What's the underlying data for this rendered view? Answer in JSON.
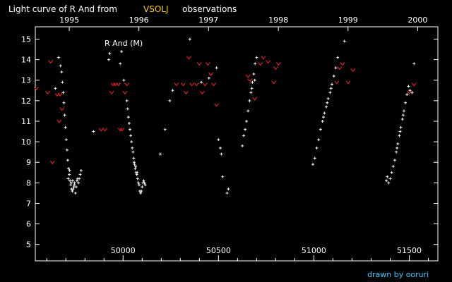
{
  "chart_data": {
    "type": "scatter",
    "title_parts": [
      "Light curve of R And from",
      "VSOLJ",
      "observations"
    ],
    "title_colors": [
      "#ffffff",
      "#ffcc00",
      "#ffffff"
    ],
    "inner_label": "R And (M)",
    "credit": "drawn by ooruri",
    "credit_color": "#33ccff",
    "x_bottom_ticks": [
      50000,
      50500,
      51000,
      51500
    ],
    "x_bottom_labels": [
      "50000",
      "50500",
      "51000",
      "51500"
    ],
    "x_top_ticks": [
      1995,
      1996,
      1997,
      1998,
      1999,
      2000
    ],
    "x_top_labels": [
      "1995",
      "1996",
      "1997",
      "1998",
      1999,
      "2000"
    ],
    "x_top_jd": [
      49718,
      50083,
      50448,
      50814,
      51179,
      51544
    ],
    "xlim": [
      49540,
      51650
    ],
    "ylim": [
      15.6,
      4.2
    ],
    "y_ticks": [
      5,
      6,
      7,
      8,
      9,
      10,
      11,
      12,
      13,
      14,
      15
    ],
    "y_labels": [
      "5",
      "6",
      "7",
      "8",
      "9",
      "10",
      "11",
      "12",
      "13",
      "14",
      "15"
    ],
    "series": [
      {
        "name": "",
        "marker": "plus",
        "color": "#ffffff",
        "points": [
          [
            49645,
            12.6
          ],
          [
            49662,
            14.1
          ],
          [
            49672,
            13.7
          ],
          [
            49678,
            13.4
          ],
          [
            49682,
            12.9
          ],
          [
            49686,
            12.4
          ],
          [
            49690,
            11.9
          ],
          [
            49694,
            11.3
          ],
          [
            49698,
            10.7
          ],
          [
            49702,
            10.1
          ],
          [
            49706,
            9.6
          ],
          [
            49710,
            9.1
          ],
          [
            49714,
            8.7
          ],
          [
            49718,
            8.4
          ],
          [
            49722,
            8.1
          ],
          [
            49726,
            7.9
          ],
          [
            49730,
            7.7
          ],
          [
            49734,
            7.6
          ],
          [
            49738,
            7.7
          ],
          [
            49742,
            7.8
          ],
          [
            49746,
            8.0
          ],
          [
            49750,
            7.5
          ],
          [
            49754,
            7.8
          ],
          [
            49758,
            8.1
          ],
          [
            49762,
            8.2
          ],
          [
            49766,
            8.0
          ],
          [
            49770,
            8.2
          ],
          [
            49775,
            8.4
          ],
          [
            49780,
            8.6
          ],
          [
            49712,
            8.2
          ],
          [
            49720,
            8.6
          ],
          [
            49728,
            8.0
          ],
          [
            49736,
            8.1
          ],
          [
            49744,
            7.9
          ],
          [
            49845,
            10.5
          ],
          [
            49925,
            14.0
          ],
          [
            49930,
            14.3
          ],
          [
            49985,
            13.8
          ],
          [
            49992,
            14.4
          ],
          [
            50004,
            13.0
          ],
          [
            50020,
            12.0
          ],
          [
            50024,
            11.6
          ],
          [
            50028,
            11.2
          ],
          [
            50032,
            10.9
          ],
          [
            50036,
            10.6
          ],
          [
            50040,
            10.3
          ],
          [
            50044,
            10.0
          ],
          [
            50048,
            9.7
          ],
          [
            50052,
            9.5
          ],
          [
            50056,
            9.2
          ],
          [
            50060,
            8.9
          ],
          [
            50064,
            8.7
          ],
          [
            50068,
            8.5
          ],
          [
            50072,
            8.4
          ],
          [
            50076,
            8.2
          ],
          [
            50080,
            8.0
          ],
          [
            50084,
            7.9
          ],
          [
            50088,
            7.6
          ],
          [
            50092,
            7.5
          ],
          [
            50096,
            7.6
          ],
          [
            50100,
            7.8
          ],
          [
            50104,
            8.0
          ],
          [
            50108,
            8.1
          ],
          [
            50112,
            8.0
          ],
          [
            50116,
            7.9
          ],
          [
            50058,
            9.0
          ],
          [
            50066,
            8.8
          ],
          [
            50074,
            8.5
          ],
          [
            50195,
            9.4
          ],
          [
            50220,
            10.6
          ],
          [
            50245,
            12.0
          ],
          [
            50260,
            12.5
          ],
          [
            50350,
            15.0
          ],
          [
            50410,
            12.9
          ],
          [
            50450,
            13.1
          ],
          [
            50490,
            13.6
          ],
          [
            50500,
            10.1
          ],
          [
            50510,
            9.7
          ],
          [
            50515,
            9.4
          ],
          [
            50522,
            8.3
          ],
          [
            50545,
            7.5
          ],
          [
            50552,
            7.7
          ],
          [
            50625,
            9.8
          ],
          [
            50632,
            10.3
          ],
          [
            50640,
            10.6
          ],
          [
            50647,
            11.0
          ],
          [
            50655,
            11.5
          ],
          [
            50663,
            12.0
          ],
          [
            50670,
            12.4
          ],
          [
            50678,
            12.9
          ],
          [
            50685,
            13.3
          ],
          [
            50692,
            13.8
          ],
          [
            50700,
            14.1
          ],
          [
            50675,
            12.6
          ],
          [
            50690,
            13.0
          ],
          [
            50995,
            8.9
          ],
          [
            51005,
            9.2
          ],
          [
            51015,
            9.7
          ],
          [
            51025,
            10.1
          ],
          [
            51035,
            10.6
          ],
          [
            51045,
            11.0
          ],
          [
            51055,
            11.4
          ],
          [
            51065,
            11.7
          ],
          [
            51075,
            12.1
          ],
          [
            51085,
            12.4
          ],
          [
            51095,
            12.8
          ],
          [
            51105,
            13.2
          ],
          [
            51115,
            13.6
          ],
          [
            51125,
            14.1
          ],
          [
            51160,
            14.9
          ],
          [
            51050,
            11.2
          ],
          [
            51070,
            11.9
          ],
          [
            51090,
            12.6
          ],
          [
            51380,
            8.1
          ],
          [
            51385,
            8.3
          ],
          [
            51392,
            8.0
          ],
          [
            51400,
            8.2
          ],
          [
            51408,
            8.5
          ],
          [
            51416,
            8.8
          ],
          [
            51424,
            9.1
          ],
          [
            51432,
            9.5
          ],
          [
            51440,
            9.9
          ],
          [
            51448,
            10.3
          ],
          [
            51456,
            10.7
          ],
          [
            51464,
            11.1
          ],
          [
            51472,
            11.5
          ],
          [
            51480,
            11.9
          ],
          [
            51488,
            12.3
          ],
          [
            51496,
            12.7
          ],
          [
            51504,
            12.5
          ],
          [
            51515,
            12.4
          ],
          [
            51525,
            13.8
          ],
          [
            51436,
            9.7
          ],
          [
            51452,
            10.5
          ],
          [
            51468,
            11.3
          ]
        ]
      },
      {
        "name": "",
        "marker": "v",
        "color": "#ff2222",
        "points": [
          [
            49545,
            12.6
          ],
          [
            49605,
            12.4
          ],
          [
            49620,
            13.9
          ],
          [
            49630,
            9.0
          ],
          [
            49655,
            12.3
          ],
          [
            49665,
            11.0
          ],
          [
            49670,
            12.3
          ],
          [
            49680,
            11.6
          ],
          [
            49885,
            10.6
          ],
          [
            49905,
            10.6
          ],
          [
            49940,
            12.4
          ],
          [
            49948,
            12.8
          ],
          [
            49960,
            12.8
          ],
          [
            49975,
            12.8
          ],
          [
            49985,
            10.6
          ],
          [
            49995,
            10.6
          ],
          [
            50010,
            12.4
          ],
          [
            50020,
            12.8
          ],
          [
            50280,
            12.8
          ],
          [
            50315,
            12.8
          ],
          [
            50330,
            12.4
          ],
          [
            50345,
            14.1
          ],
          [
            50360,
            12.8
          ],
          [
            50385,
            12.8
          ],
          [
            50400,
            13.8
          ],
          [
            50415,
            12.4
          ],
          [
            50430,
            12.8
          ],
          [
            50445,
            13.8
          ],
          [
            50460,
            13.3
          ],
          [
            50475,
            12.8
          ],
          [
            50490,
            11.8
          ],
          [
            50655,
            13.2
          ],
          [
            50665,
            13.0
          ],
          [
            50690,
            12.1
          ],
          [
            50720,
            13.8
          ],
          [
            50735,
            14.1
          ],
          [
            50760,
            13.9
          ],
          [
            50790,
            12.9
          ],
          [
            50800,
            13.6
          ],
          [
            50815,
            13.8
          ],
          [
            51120,
            12.9
          ],
          [
            51135,
            13.6
          ],
          [
            51150,
            13.8
          ],
          [
            51180,
            12.9
          ],
          [
            51205,
            13.5
          ],
          [
            51500,
            12.4
          ],
          [
            51525,
            12.8
          ]
        ]
      }
    ]
  }
}
